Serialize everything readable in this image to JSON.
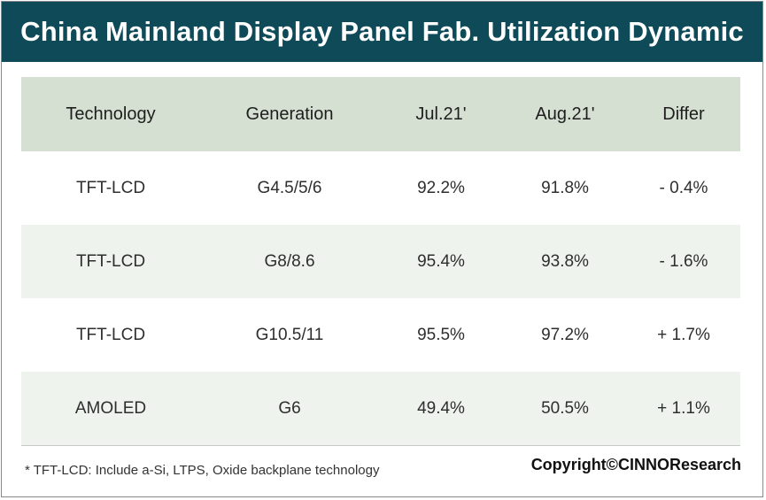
{
  "title": "China Mainland Display Panel Fab. Utilization Dynamic",
  "chart_data": {
    "type": "table",
    "title": "China Mainland Display Panel Fab. Utilization Dynamic",
    "columns": [
      "Technology",
      "Generation",
      "Jul.21'",
      "Aug.21'",
      "Differ"
    ],
    "rows": [
      [
        "TFT-LCD",
        "G4.5/5/6",
        "92.2%",
        "91.8%",
        "- 0.4%"
      ],
      [
        "TFT-LCD",
        "G8/8.6",
        "95.4%",
        "93.8%",
        "- 1.6%"
      ],
      [
        "TFT-LCD",
        "G10.5/11",
        "95.5%",
        "97.2%",
        "+ 1.7%"
      ],
      [
        "AMOLED",
        "G6",
        "49.4%",
        "50.5%",
        "+ 1.1%"
      ]
    ]
  },
  "footnote": "* TFT-LCD: Include a-Si, LTPS, Oxide backplane technology",
  "copyright": "Copyright©CINNOResearch",
  "colors": {
    "title_bar": "#0e4a58",
    "header_row": "#d5e0d3",
    "shaded_row": "#eef3ed"
  }
}
